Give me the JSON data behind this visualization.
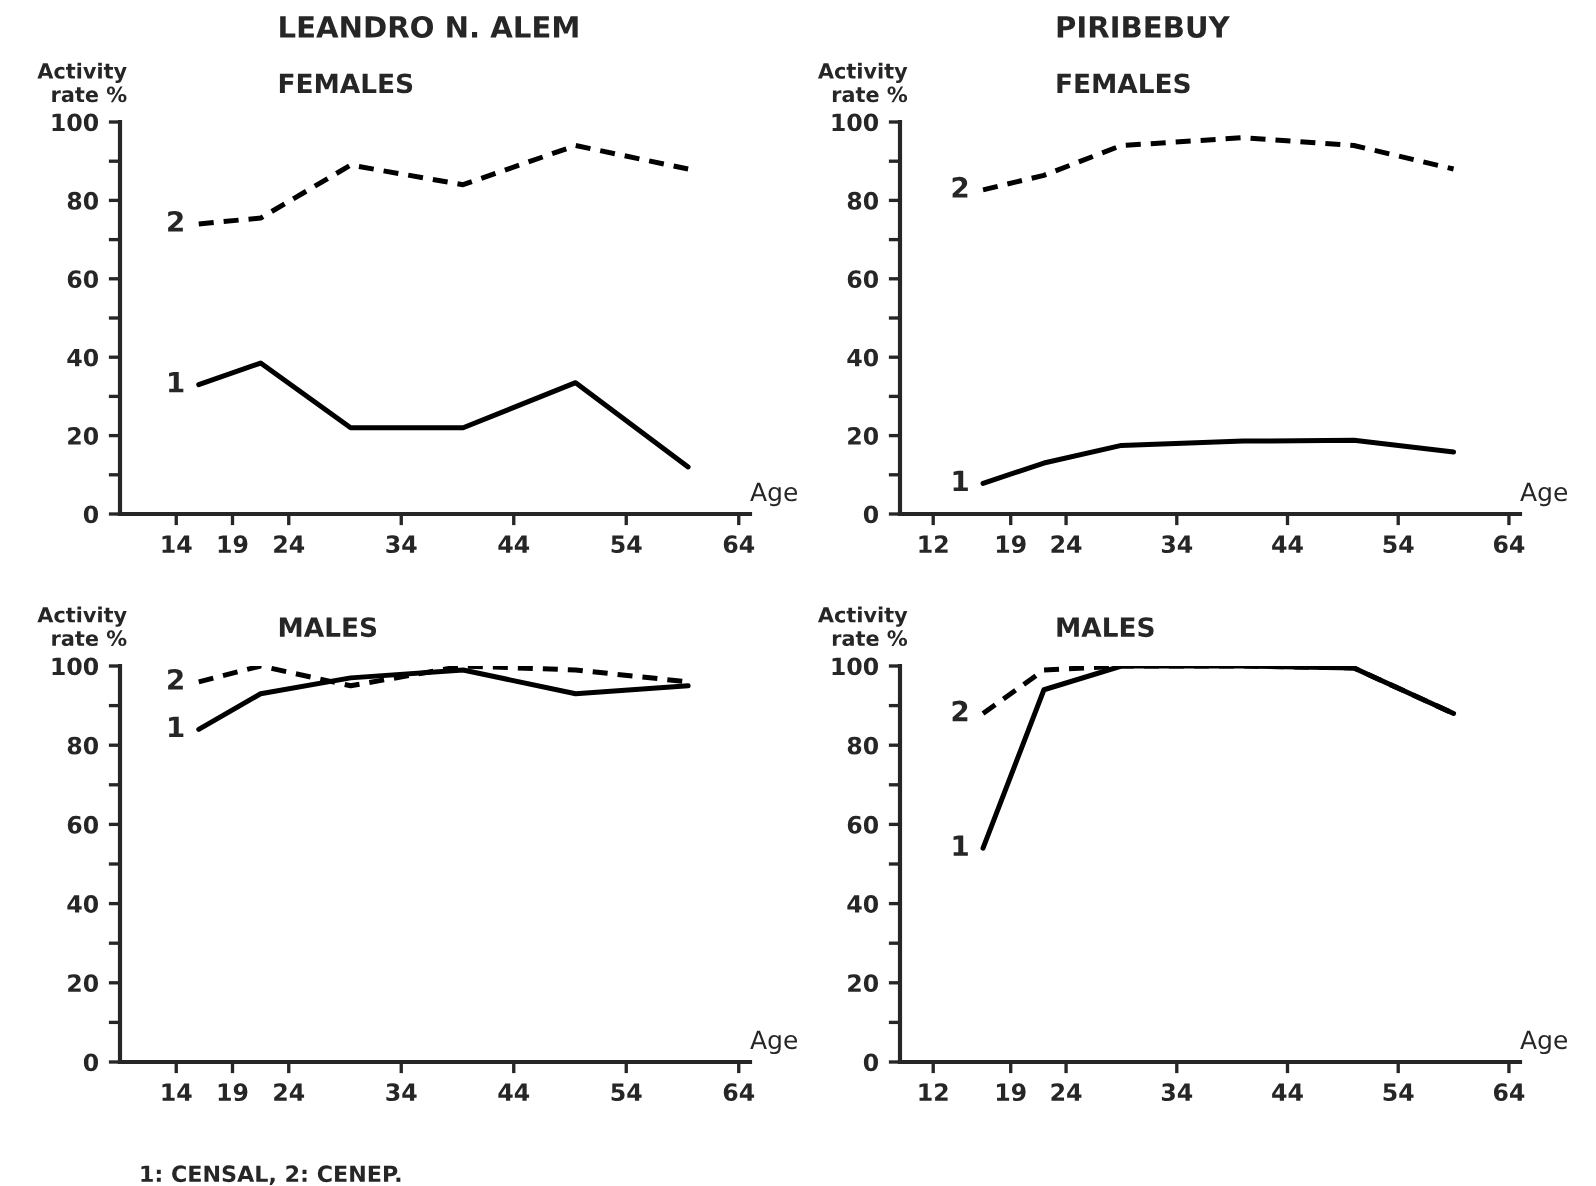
{
  "chart_data": [
    {
      "type": "line",
      "title": "LEANDRO N. ALEM",
      "subtitle": "FEMALES",
      "xlabel": "Age",
      "ylabel": "Activity\nrate %",
      "x": [
        16,
        21.5,
        29.5,
        39.5,
        49.5,
        59.5
      ],
      "series": [
        {
          "name": "1",
          "color": "#000000",
          "line_style": "solid",
          "values": [
            33,
            38.5,
            22,
            22,
            33.5,
            12
          ]
        },
        {
          "name": "2",
          "color": "#000000",
          "line_style": "dashed",
          "values": [
            74,
            75.5,
            89,
            84,
            94,
            88
          ]
        }
      ],
      "xlim": [
        9,
        65
      ],
      "xticks": [
        14,
        19,
        24,
        34,
        44,
        54,
        64
      ],
      "ylim": [
        0,
        100
      ],
      "yticks": [
        0,
        {
          "value": 10,
          "label": null
        },
        20,
        {
          "value": 30,
          "label": null
        },
        40,
        {
          "value": 50,
          "label": null
        },
        60,
        {
          "value": 70,
          "label": null
        },
        80,
        {
          "value": 90,
          "label": null
        },
        100
      ],
      "grid": false,
      "legend": false,
      "marker": "none"
    },
    {
      "type": "line",
      "title": "PIRIBEBUY",
      "subtitle": "FEMALES",
      "xlabel": "Age",
      "ylabel": "Activity\nrate %",
      "x": [
        16.5,
        22,
        29,
        40,
        50,
        59
      ],
      "series": [
        {
          "name": "1",
          "color": "#000000",
          "line_style": "solid",
          "values": [
            7.8,
            13,
            17.5,
            18.6,
            18.8,
            15.8
          ]
        },
        {
          "name": "2",
          "color": "#000000",
          "line_style": "dashed",
          "values": [
            82.7,
            86.4,
            94,
            96,
            94,
            88
          ]
        }
      ],
      "xlim": [
        9,
        65
      ],
      "xticks": [
        12,
        19,
        24,
        34,
        44,
        54,
        64
      ],
      "ylim": [
        0,
        100
      ],
      "yticks": [
        0,
        {
          "value": 10,
          "label": null
        },
        20,
        {
          "value": 30,
          "label": null
        },
        40,
        {
          "value": 50,
          "label": null
        },
        60,
        {
          "value": 70,
          "label": null
        },
        80,
        {
          "value": 90,
          "label": null
        },
        100
      ],
      "grid": false,
      "legend": false,
      "marker": "none"
    },
    {
      "type": "line",
      "subtitle": "MALES",
      "xlabel": "Age",
      "ylabel": "Activity\nrate %",
      "x": [
        16,
        21.5,
        29.5,
        39.5,
        49.5,
        59.5
      ],
      "series": [
        {
          "name": "1",
          "color": "#000000",
          "line_style": "solid",
          "values": [
            84,
            93,
            97,
            99,
            93,
            95
          ]
        },
        {
          "name": "2",
          "color": "#000000",
          "line_style": "dashed",
          "values": [
            96,
            100,
            95,
            100,
            99,
            96
          ]
        }
      ],
      "xlim": [
        9,
        65
      ],
      "xticks": [
        14,
        19,
        24,
        34,
        44,
        54,
        64
      ],
      "ylim": [
        0,
        100
      ],
      "yticks": [
        0,
        {
          "value": 10,
          "label": null
        },
        20,
        {
          "value": 30,
          "label": null
        },
        40,
        {
          "value": 50,
          "label": null
        },
        60,
        {
          "value": 70,
          "label": null
        },
        80,
        {
          "value": 90,
          "label": null
        },
        100
      ],
      "grid": false,
      "legend": false,
      "marker": "none",
      "annotations": [
        "1: CENSAL, 2: CENEP."
      ]
    },
    {
      "type": "line",
      "subtitle": "MALES",
      "xlabel": "Age",
      "ylabel": "Activity\nrate %",
      "x": [
        16.5,
        22,
        29,
        40,
        50,
        59
      ],
      "series": [
        {
          "name": "1",
          "color": "#000000",
          "line_style": "solid",
          "values": [
            54,
            94,
            100,
            100,
            99.5,
            88
          ]
        },
        {
          "name": "2",
          "color": "#000000",
          "line_style": "dashed",
          "values": [
            88,
            99,
            100,
            100,
            99.5,
            88
          ]
        }
      ],
      "xlim": [
        9,
        65
      ],
      "xticks": [
        12,
        19,
        24,
        34,
        44,
        54,
        64
      ],
      "ylim": [
        0,
        100
      ],
      "yticks": [
        0,
        {
          "value": 10,
          "label": null
        },
        20,
        {
          "value": 30,
          "label": null
        },
        40,
        {
          "value": 50,
          "label": null
        },
        60,
        {
          "value": 70,
          "label": null
        },
        80,
        {
          "value": 90,
          "label": null
        },
        100
      ],
      "grid": false,
      "legend": false,
      "marker": "none"
    }
  ]
}
